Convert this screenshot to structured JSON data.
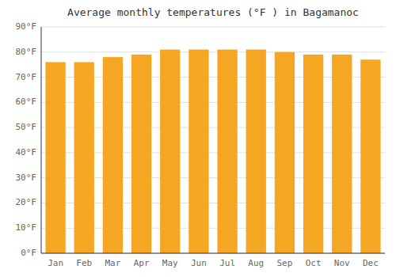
{
  "chart_data": {
    "type": "bar",
    "title": "Average monthly temperatures (°F ) in Bagamanoc",
    "categories": [
      "Jan",
      "Feb",
      "Mar",
      "Apr",
      "May",
      "Jun",
      "Jul",
      "Aug",
      "Sep",
      "Oct",
      "Nov",
      "Dec"
    ],
    "values": [
      76,
      76,
      78,
      79,
      81,
      81,
      81,
      81,
      80,
      79,
      79,
      77
    ],
    "color": "#F5A623",
    "ylim": [
      0,
      90
    ],
    "yticks": [
      {
        "value": 0,
        "label": "0°F"
      },
      {
        "value": 10,
        "label": "10°F"
      },
      {
        "value": 20,
        "label": "20°F"
      },
      {
        "value": 30,
        "label": "30°F"
      },
      {
        "value": 40,
        "label": "40°F"
      },
      {
        "value": 50,
        "label": "50°F"
      },
      {
        "value": 60,
        "label": "60°F"
      },
      {
        "value": 70,
        "label": "70°F"
      },
      {
        "value": 80,
        "label": "80°F"
      },
      {
        "value": 90,
        "label": "90°F"
      }
    ],
    "grid": true
  }
}
